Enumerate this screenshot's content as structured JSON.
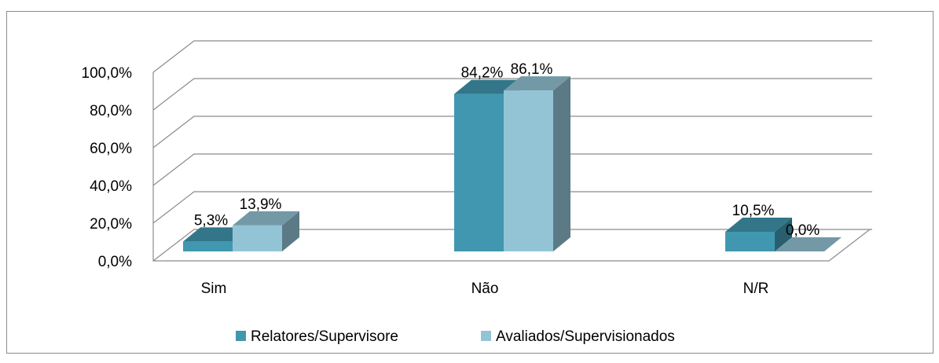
{
  "chart_data": {
    "type": "bar3d",
    "categories": [
      "Sim",
      "Não",
      "N/R"
    ],
    "series": [
      {
        "name": "Relatores/Supervisore",
        "color": "#4197b0",
        "values": [
          5.3,
          84.2,
          10.5
        ],
        "value_labels": [
          "5,3%",
          "84,2%",
          "10,5%"
        ]
      },
      {
        "name": "Avaliados/Supervisionados",
        "color": "#93c4d6",
        "values": [
          13.9,
          86.1,
          0
        ],
        "value_labels": [
          "13,9%",
          "86,1%",
          "0,0%"
        ]
      }
    ],
    "ylim": [
      0,
      100
    ],
    "yticks": [
      {
        "value": 0,
        "label": "0,0%"
      },
      {
        "value": 20,
        "label": "20,0%"
      },
      {
        "value": 40,
        "label": "40,0%"
      },
      {
        "value": 60,
        "label": "60,0%"
      },
      {
        "value": 80,
        "label": "80,0%"
      },
      {
        "value": 100,
        "label": "100,0%"
      }
    ],
    "grid": true,
    "legend": "bottom"
  }
}
